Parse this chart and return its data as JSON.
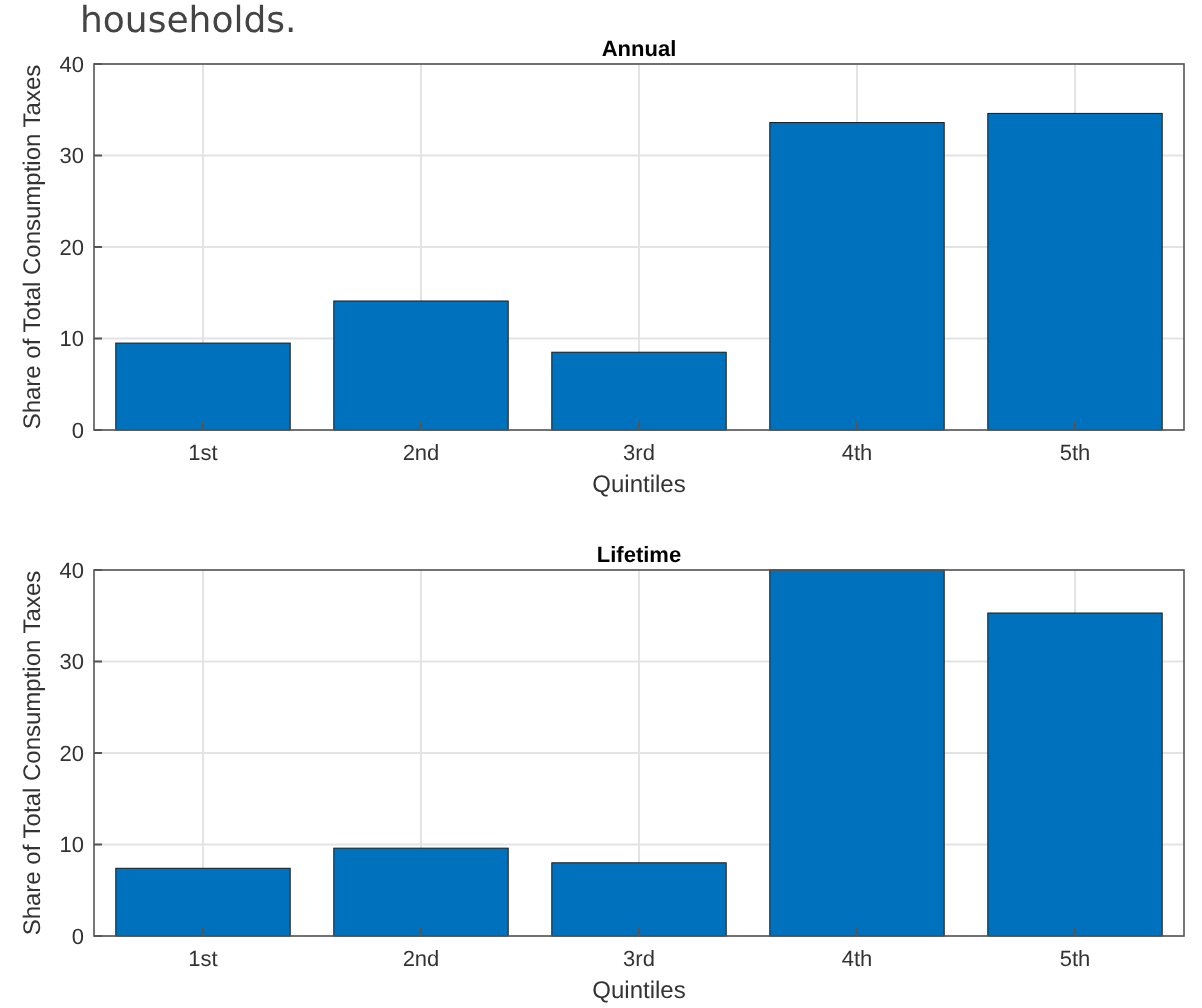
{
  "chart_data": [
    {
      "type": "bar",
      "title": "Annual",
      "xlabel": "Quintiles",
      "ylabel": "Share of Total Consumption Taxes",
      "categories": [
        "1st",
        "2nd",
        "3rd",
        "4th",
        "5th"
      ],
      "values": [
        9.5,
        14.1,
        8.5,
        33.6,
        34.6
      ],
      "color": "#0072bd",
      "ylim": [
        0,
        40
      ],
      "yticks": [
        0,
        10,
        20,
        30,
        40
      ],
      "grid": true,
      "annotations": [
        "households."
      ]
    },
    {
      "type": "bar",
      "title": "Lifetime",
      "xlabel": "Quintiles",
      "ylabel": "Share of Total Consumption Taxes",
      "categories": [
        "1st",
        "2nd",
        "3rd",
        "4th",
        "5th"
      ],
      "values": [
        7.4,
        9.6,
        8.0,
        40,
        35.3
      ],
      "color": "#0072bd",
      "ylim": [
        0,
        40
      ],
      "yticks": [
        0,
        10,
        20,
        30,
        40
      ],
      "grid": true
    }
  ]
}
